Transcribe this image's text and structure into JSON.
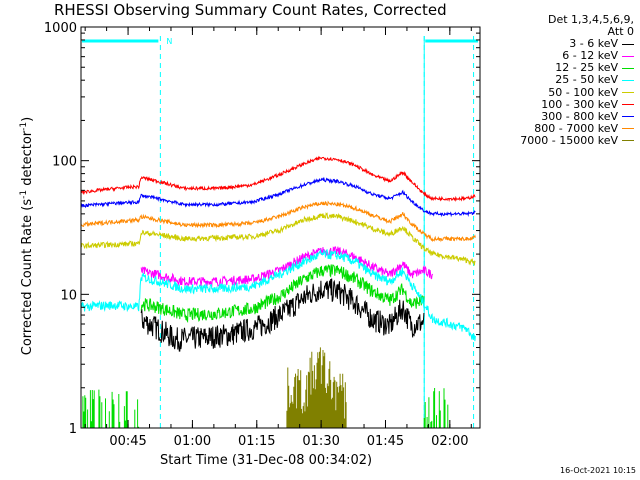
{
  "chart_data": {
    "type": "line",
    "title": "RHESSI Observing Summary Count Rates, Corrected",
    "xlabel": "Start Time (31-Dec-08 00:34:02)",
    "ylabel_main": "Corrected Count Rate (s",
    "ylabel_sup1": "-1",
    "ylabel_mid": " detector",
    "ylabel_sup2": "-1",
    "ylabel_end": ")",
    "y_scale": "log",
    "ylim": [
      1,
      1000
    ],
    "xlim_minutes": [
      0,
      93
    ],
    "x_ticks": [
      {
        "minute": 10.97,
        "label": "00:45"
      },
      {
        "minute": 25.97,
        "label": "01:00"
      },
      {
        "minute": 40.97,
        "label": "01:15"
      },
      {
        "minute": 55.97,
        "label": "01:30"
      },
      {
        "minute": 70.97,
        "label": "01:45"
      },
      {
        "minute": 85.97,
        "label": "02:00"
      }
    ],
    "y_ticks": [
      {
        "value": 1,
        "label": "1"
      },
      {
        "value": 10,
        "label": "10"
      },
      {
        "value": 100,
        "label": "100"
      },
      {
        "value": 1000,
        "label": "1000"
      }
    ],
    "legend_header": [
      "Det 1,3,4,5,6,9,",
      "Att 0"
    ],
    "legend_position": "right",
    "annotations": [
      {
        "label": "N",
        "minute": 18.5
      }
    ],
    "night_intervals_minutes": [
      [
        0,
        18.5
      ],
      [
        80,
        93
      ]
    ],
    "dashed_markers_minutes": [
      18.5,
      80,
      91.5
    ],
    "series": [
      {
        "name": "3 - 6 keV",
        "color": "#000000",
        "x": [
          0,
          13.5,
          14,
          18,
          22,
          28,
          35,
          42,
          48,
          52,
          56,
          60,
          64,
          68,
          72,
          75,
          77,
          78,
          80,
          81,
          82
        ],
        "values": [
          null,
          null,
          6.5,
          5.5,
          4.6,
          4.7,
          5.0,
          5.8,
          7.5,
          9.5,
          11,
          10.5,
          8.6,
          6.5,
          5.8,
          8.0,
          5.8,
          6.0,
          6.2,
          null,
          null
        ]
      },
      {
        "name": "6 - 12 keV",
        "color": "#ff00ff",
        "x": [
          0,
          13.5,
          14,
          18,
          24,
          32,
          40,
          46,
          52,
          56,
          60,
          64,
          68,
          72,
          75,
          77,
          80,
          82
        ],
        "values": [
          null,
          null,
          15,
          14,
          12.5,
          12.5,
          13,
          15,
          19,
          21,
          21,
          19,
          16,
          14,
          17,
          14,
          15,
          14
        ]
      },
      {
        "name": "12 - 25 keV",
        "color": "#00dd00",
        "x": [
          0,
          13.5,
          14,
          18,
          24,
          32,
          40,
          46,
          52,
          56,
          60,
          64,
          68,
          72,
          75,
          77,
          80,
          81
        ],
        "values": [
          null,
          null,
          8.5,
          8.0,
          7.0,
          7.2,
          7.8,
          9.5,
          13,
          15,
          15,
          13,
          10.5,
          9.0,
          11,
          8.5,
          9.0,
          null
        ]
      },
      {
        "name": "25 - 50 keV",
        "color": "#00ffff",
        "x": [
          0,
          4,
          8,
          13.5,
          14,
          18,
          24,
          32,
          40,
          46,
          52,
          56,
          60,
          64,
          68,
          72,
          75,
          77,
          80,
          82,
          86,
          90,
          92
        ],
        "values": [
          8.0,
          8.2,
          8.3,
          8.0,
          13.5,
          12.5,
          11,
          11,
          11.5,
          14,
          17.5,
          20,
          19.5,
          17.5,
          14,
          12.5,
          15,
          12,
          8.5,
          6.5,
          6.0,
          5.5,
          4.5
        ]
      },
      {
        "name": "50 - 100 keV",
        "color": "#cccc00",
        "x": [
          0,
          13.5,
          14,
          18,
          24,
          32,
          40,
          46,
          52,
          56,
          60,
          64,
          68,
          72,
          75,
          77,
          80,
          82,
          86,
          90,
          92
        ],
        "values": [
          23,
          24,
          29,
          28,
          26,
          26.5,
          27,
          30,
          36,
          39,
          38,
          35,
          31,
          28,
          32,
          27,
          22,
          20,
          19,
          18,
          17
        ]
      },
      {
        "name": "100 - 300 keV",
        "color": "#ff0000",
        "x": [
          0,
          4,
          8,
          13.5,
          14,
          18,
          24,
          32,
          40,
          46,
          52,
          56,
          60,
          64,
          68,
          72,
          75,
          77,
          80,
          82,
          86,
          90,
          92
        ],
        "values": [
          58,
          60,
          62,
          64,
          75,
          70,
          62,
          62,
          66,
          78,
          95,
          105,
          102,
          92,
          78,
          70,
          82,
          70,
          56,
          52,
          52,
          52,
          55
        ]
      },
      {
        "name": "300 - 800 keV",
        "color": "#0000ff",
        "x": [
          0,
          4,
          8,
          13.5,
          14,
          18,
          24,
          32,
          40,
          46,
          52,
          56,
          60,
          64,
          68,
          72,
          75,
          77,
          80,
          82,
          86,
          90,
          92
        ],
        "values": [
          46,
          47,
          48,
          49,
          55,
          52,
          47,
          47,
          49,
          56,
          66,
          72,
          70,
          64,
          56,
          52,
          58,
          50,
          42,
          40,
          40,
          40,
          41
        ]
      },
      {
        "name": "800 - 7000 keV",
        "color": "#ff8800",
        "x": [
          0,
          4,
          8,
          13.5,
          14,
          18,
          24,
          32,
          40,
          46,
          52,
          56,
          60,
          64,
          68,
          72,
          75,
          77,
          80,
          82,
          86,
          90,
          92
        ],
        "values": [
          33,
          34,
          35,
          36,
          38,
          36,
          33,
          33,
          34,
          38,
          45,
          48,
          47,
          44,
          39,
          35,
          40,
          34,
          28,
          26,
          26,
          26,
          27
        ]
      },
      {
        "name": "7000 - 15000 keV",
        "color": "#808000",
        "x": [
          48,
          50,
          52,
          54,
          56,
          58,
          60,
          62
        ],
        "values": [
          1.6,
          1.8,
          1.5,
          2.2,
          2.5,
          1.9,
          1.6,
          1.4
        ]
      }
    ],
    "sparse_green_segments_minutes": [
      [
        0,
        13.5
      ],
      [
        80,
        85.5
      ]
    ],
    "sparse_green_range": [
      1,
      2
    ]
  },
  "footer": {
    "timestamp": "16-Oct-2021 10:15"
  },
  "colors": {
    "axis": "#000000",
    "night_bar": "#00ffff",
    "marker": "#00ffff"
  }
}
